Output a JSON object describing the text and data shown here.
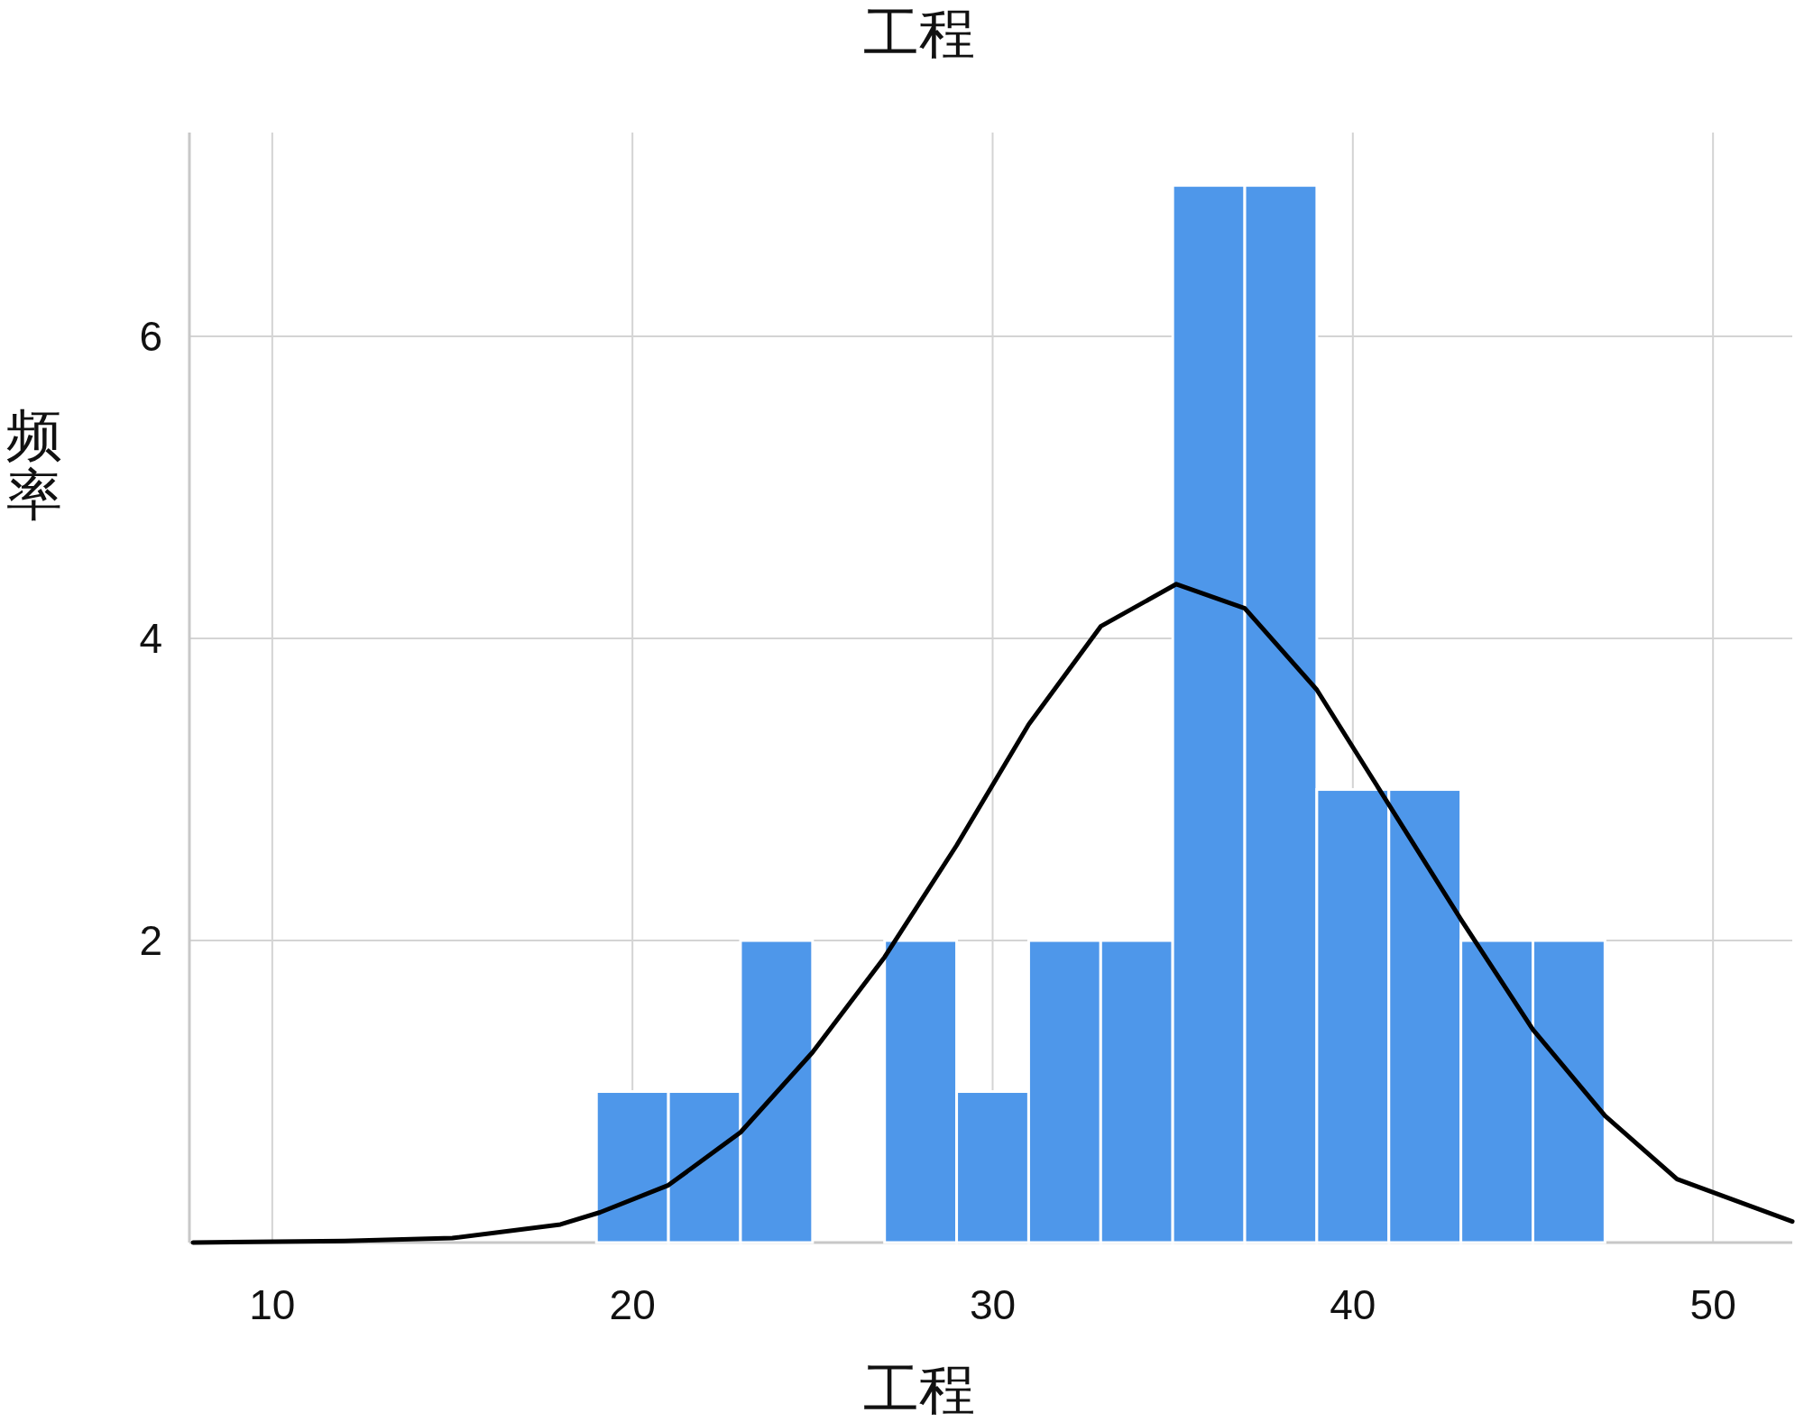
{
  "chart_data": {
    "type": "histogram",
    "title": "工程",
    "xlabel": "工程",
    "ylabel": "频率",
    "bins": [
      19,
      21,
      23,
      25,
      27,
      29,
      31,
      33,
      35,
      37,
      39,
      41,
      43,
      45,
      47
    ],
    "values": [
      1,
      1,
      2,
      0,
      2,
      1,
      2,
      2,
      7,
      7,
      3,
      3,
      2,
      2
    ],
    "color": "#4e97ea",
    "series": [
      {
        "type": "line",
        "color": "#000000",
        "x": [
          7.8,
          12,
          15,
          18,
          19.1,
          21,
          23,
          25,
          27,
          29,
          31,
          33,
          35.1,
          37,
          39,
          41,
          43,
          45,
          47,
          49,
          52.2
        ],
        "values": [
          0.0,
          0.01,
          0.03,
          0.12,
          0.2,
          0.38,
          0.73,
          1.26,
          1.89,
          2.63,
          3.43,
          4.08,
          4.36,
          4.2,
          3.66,
          2.9,
          2.14,
          1.41,
          0.84,
          0.42,
          0.14
        ]
      }
    ],
    "xlim": [
      7.7,
      52.2
    ],
    "ylim": [
      0,
      7.35
    ],
    "xticks": [
      10,
      20,
      30,
      40,
      50
    ],
    "yticks": [
      2,
      4,
      6
    ],
    "grid": true
  }
}
